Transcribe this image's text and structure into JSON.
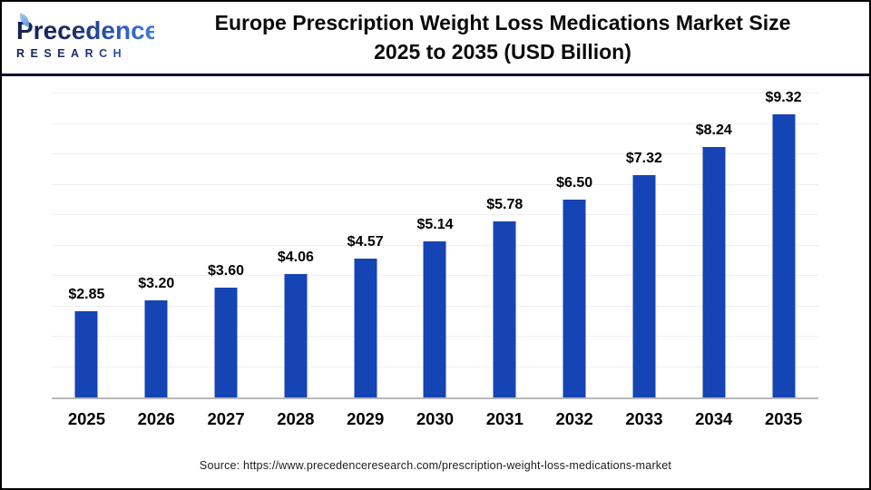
{
  "header": {
    "logo": {
      "wordmark": "Precedence",
      "subtext": "RESEARCH"
    },
    "title_line1": "Europe Prescription Weight Loss Medications Market Size",
    "title_line2": "2025 to 2035 (USD Billion)"
  },
  "chart_data": {
    "type": "bar",
    "title": "Europe Prescription Weight Loss Medications Market Size 2025 to 2035 (USD Billion)",
    "categories": [
      "2025",
      "2026",
      "2027",
      "2028",
      "2029",
      "2030",
      "2031",
      "2032",
      "2033",
      "2034",
      "2035"
    ],
    "values": [
      2.85,
      3.2,
      3.6,
      4.06,
      4.57,
      5.14,
      5.78,
      6.5,
      7.32,
      8.24,
      9.32
    ],
    "value_labels": [
      "$2.85",
      "$3.20",
      "$3.60",
      "$4.06",
      "$4.57",
      "$5.14",
      "$5.78",
      "$6.50",
      "$7.32",
      "$8.24",
      "$9.32"
    ],
    "unit": "USD Billion",
    "xlabel": "",
    "ylabel": "",
    "ylim": [
      0,
      10
    ],
    "grid": true,
    "grid_interval": 1,
    "legend_position": "none",
    "bar_color": "#1544b4",
    "gridline_color": "#efefef",
    "axis_line_color": "#b8b8b8"
  },
  "footer": {
    "source": "Source: https://www.precedenceresearch.com/prescription-weight-loss-medications-market"
  }
}
